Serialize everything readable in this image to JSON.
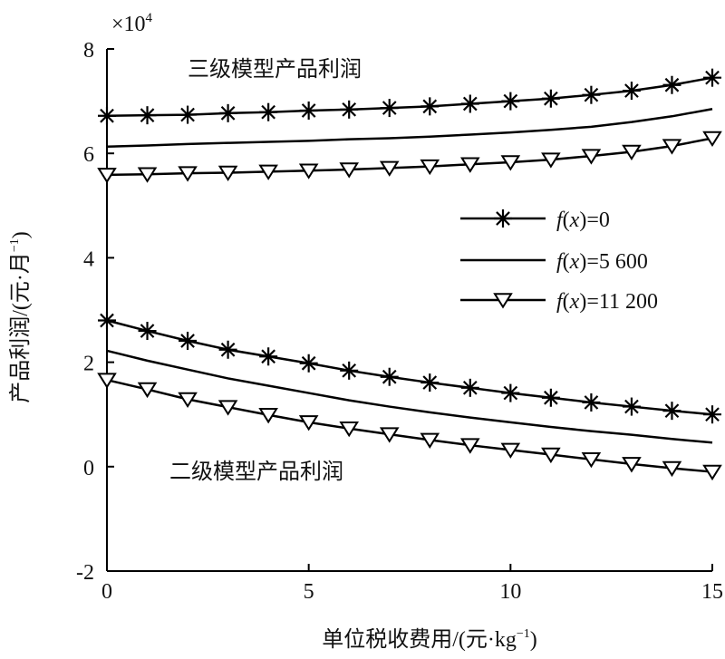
{
  "chart_data": {
    "type": "line",
    "multiplier": "×10",
    "multiplier_exp": "4",
    "xlabel": "单位税收费用/(元·kg",
    "xlabel_sup": "−1",
    "xlabel_tail": ")",
    "ylabel": "产品利润/(元·月",
    "ylabel_sup": "−1",
    "ylabel_tail": ")",
    "xlim": [
      0,
      15
    ],
    "ylim": [
      -2,
      8
    ],
    "x_ticks": [
      0,
      5,
      10,
      15
    ],
    "x_tick_labels": [
      "0",
      "5",
      "10",
      "15"
    ],
    "y_ticks": [
      -2,
      0,
      2,
      4,
      6,
      8
    ],
    "y_tick_labels": [
      "-2",
      "0",
      "2",
      "4",
      "6",
      "8"
    ],
    "grid": false,
    "legend_placement": "right-center",
    "annotations": {
      "level3": "三级模型产品利润",
      "level2": "二级模型产品利润"
    },
    "legend": [
      {
        "fx": "f",
        "x": "x",
        "eq": "=0",
        "marker": "asterisk"
      },
      {
        "fx": "f",
        "x": "x",
        "eq": "=5 600",
        "marker": "none"
      },
      {
        "fx": "f",
        "x": "x",
        "eq": "=11 200",
        "marker": "triangle-down"
      }
    ],
    "x": [
      0,
      1,
      2,
      3,
      4,
      5,
      6,
      7,
      8,
      9,
      10,
      11,
      12,
      13,
      14,
      15
    ],
    "series": [
      {
        "group": "level3",
        "legend_index": 0,
        "marker": "asterisk",
        "values": [
          6.72,
          6.73,
          6.74,
          6.77,
          6.79,
          6.82,
          6.84,
          6.87,
          6.9,
          6.95,
          7.0,
          7.05,
          7.12,
          7.2,
          7.31,
          7.45
        ]
      },
      {
        "group": "level3",
        "legend_index": 1,
        "marker": "none",
        "values": [
          6.13,
          6.15,
          6.18,
          6.2,
          6.22,
          6.24,
          6.27,
          6.29,
          6.32,
          6.36,
          6.4,
          6.45,
          6.51,
          6.6,
          6.71,
          6.85
        ]
      },
      {
        "group": "level3",
        "legend_index": 2,
        "marker": "triangle-down",
        "values": [
          5.59,
          5.6,
          5.62,
          5.63,
          5.65,
          5.67,
          5.69,
          5.72,
          5.75,
          5.79,
          5.83,
          5.88,
          5.95,
          6.03,
          6.14,
          6.29
        ]
      },
      {
        "group": "level2",
        "legend_index": 0,
        "marker": "asterisk",
        "values": [
          2.8,
          2.6,
          2.41,
          2.24,
          2.11,
          1.98,
          1.84,
          1.72,
          1.61,
          1.51,
          1.41,
          1.32,
          1.23,
          1.15,
          1.07,
          1.0
        ]
      },
      {
        "group": "level2",
        "legend_index": 1,
        "marker": "none",
        "values": [
          2.22,
          2.03,
          1.86,
          1.69,
          1.55,
          1.41,
          1.27,
          1.15,
          1.04,
          0.94,
          0.85,
          0.76,
          0.68,
          0.61,
          0.53,
          0.46
        ]
      },
      {
        "group": "level2",
        "legend_index": 2,
        "marker": "triangle-down",
        "values": [
          1.66,
          1.48,
          1.29,
          1.14,
          0.99,
          0.85,
          0.73,
          0.62,
          0.51,
          0.41,
          0.32,
          0.23,
          0.14,
          0.05,
          -0.03,
          -0.1
        ]
      }
    ]
  }
}
